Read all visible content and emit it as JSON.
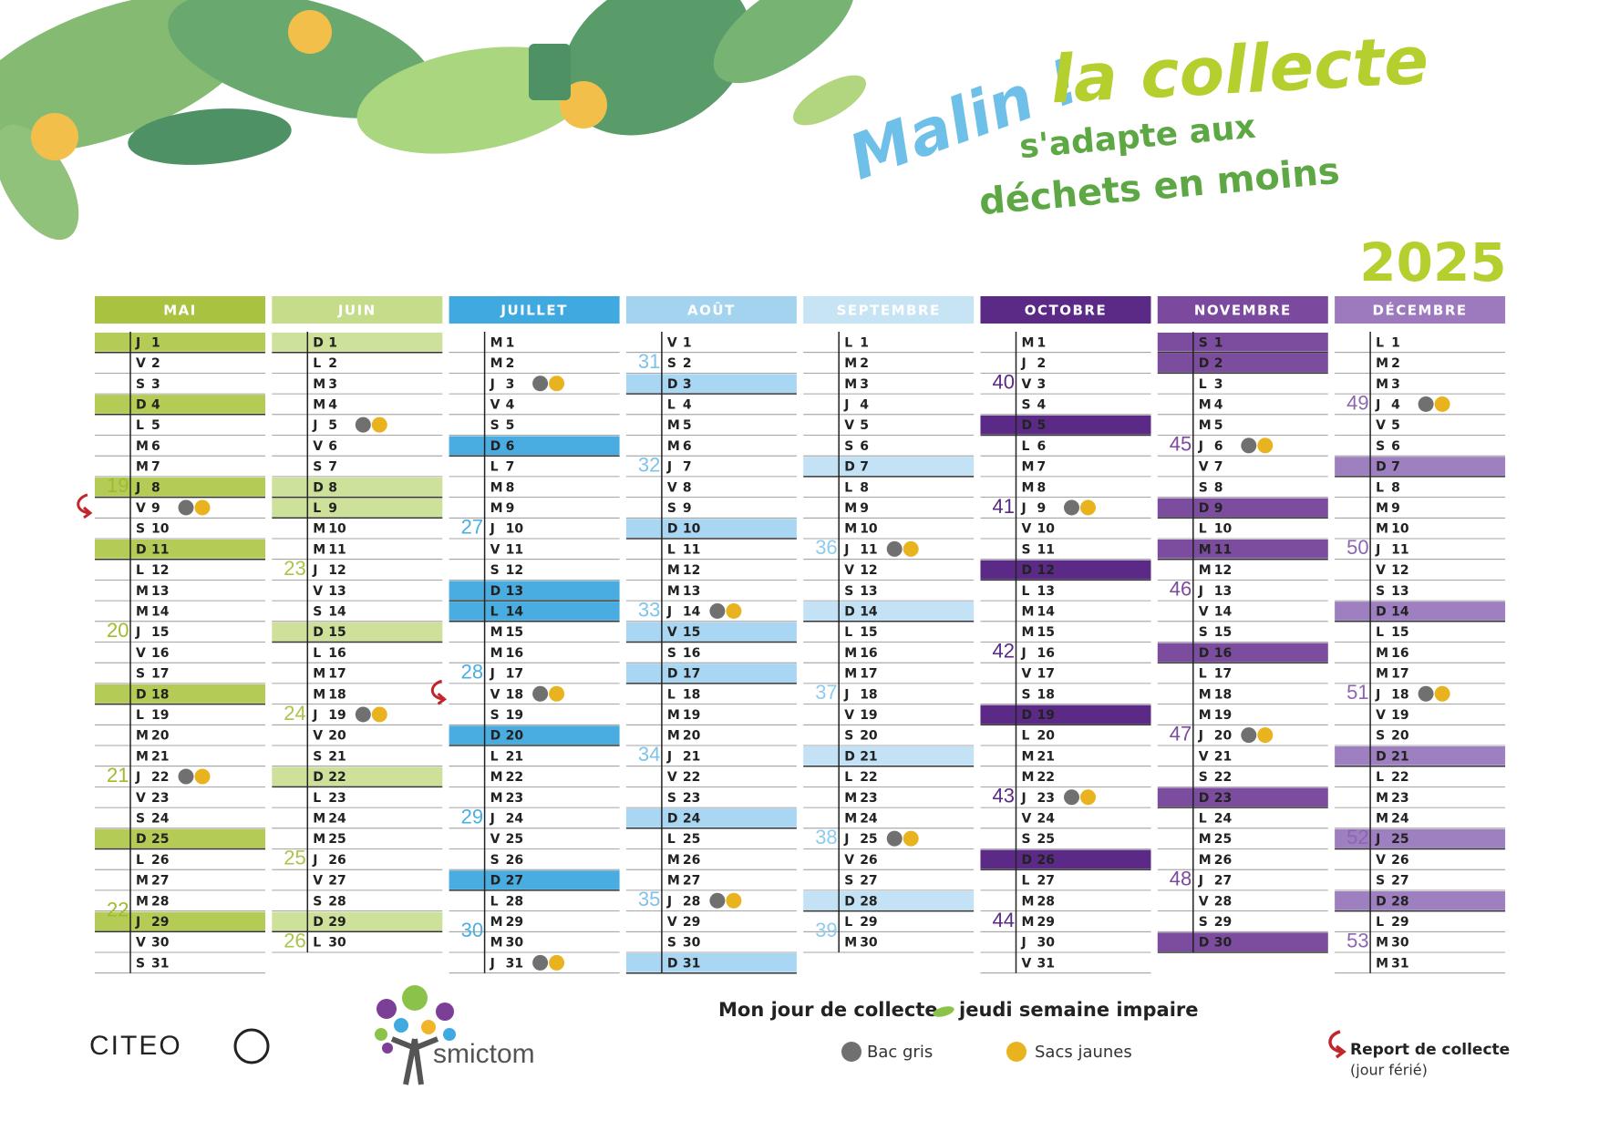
{
  "title": {
    "line1": "Malin !",
    "line2": "la collecte",
    "line3": "s'adapte aux",
    "line4": "déchets en moins"
  },
  "year": "2025",
  "months": [
    {
      "name": "MAI",
      "color": "#a9c23f",
      "highlight": "#b4cc55",
      "highlight_text": "#222",
      "week_color": "#9fbc2f",
      "letters": [
        "J",
        "V",
        "S",
        "D",
        "L",
        "M",
        "M",
        "J",
        "V",
        "S",
        "D",
        "L",
        "M",
        "M",
        "J",
        "V",
        "S",
        "D",
        "L",
        "M",
        "M",
        "J",
        "V",
        "S",
        "D",
        "L",
        "M",
        "M",
        "J",
        "V",
        "S"
      ],
      "days": [
        1,
        2,
        3,
        4,
        5,
        6,
        7,
        8,
        9,
        10,
        11,
        12,
        13,
        14,
        15,
        16,
        17,
        18,
        19,
        20,
        21,
        22,
        23,
        24,
        25,
        26,
        27,
        28,
        29,
        30,
        31
      ],
      "highlighted": [
        0,
        3,
        7,
        10,
        17,
        24,
        28
      ],
      "collection": [
        8,
        21
      ],
      "report": [
        8
      ],
      "weeks": [
        19,
        20,
        21,
        22
      ]
    },
    {
      "name": "JUIN",
      "color": "#c5dc8a",
      "highlight": "#cde19a",
      "highlight_text": "#222",
      "week_color": "#a9c54a",
      "letters": [
        "D",
        "L",
        "M",
        "M",
        "J",
        "V",
        "S",
        "D",
        "L",
        "M",
        "M",
        "J",
        "V",
        "S",
        "D",
        "L",
        "M",
        "M",
        "J",
        "V",
        "S",
        "D",
        "L",
        "M",
        "M",
        "J",
        "V",
        "S",
        "D",
        "L"
      ],
      "days": [
        1,
        2,
        3,
        4,
        5,
        6,
        7,
        8,
        9,
        10,
        11,
        12,
        13,
        14,
        15,
        16,
        17,
        18,
        19,
        20,
        21,
        22,
        23,
        24,
        25,
        26,
        27,
        28,
        29,
        30
      ],
      "highlighted": [
        0,
        7,
        8,
        14,
        21,
        28
      ],
      "collection": [
        4,
        18
      ],
      "report": [],
      "weeks": [
        23,
        24,
        25,
        26
      ]
    },
    {
      "name": "JUILLET",
      "color": "#3fa9e0",
      "highlight": "#49ade1",
      "highlight_text": "#222",
      "week_color": "#4aaee0",
      "letters": [
        "M",
        "M",
        "J",
        "V",
        "S",
        "D",
        "L",
        "M",
        "M",
        "J",
        "V",
        "S",
        "D",
        "L",
        "M",
        "M",
        "J",
        "V",
        "S",
        "D",
        "L",
        "M",
        "M",
        "J",
        "V",
        "S",
        "D",
        "L",
        "M",
        "M",
        "J"
      ],
      "days": [
        1,
        2,
        3,
        4,
        5,
        6,
        7,
        8,
        9,
        10,
        11,
        12,
        13,
        14,
        15,
        16,
        17,
        18,
        19,
        20,
        21,
        22,
        23,
        24,
        25,
        26,
        27,
        28,
        29,
        30,
        31
      ],
      "highlighted": [
        5,
        12,
        13,
        19,
        26
      ],
      "collection": [
        2,
        17,
        30
      ],
      "report": [
        17
      ],
      "weeks": [
        27,
        28,
        29,
        30
      ]
    },
    {
      "name": "AOÛT",
      "color": "#a4d3f0",
      "highlight": "#a9d6f2",
      "highlight_text": "#222",
      "week_color": "#7fc2ea",
      "letters": [
        "V",
        "S",
        "D",
        "L",
        "M",
        "M",
        "J",
        "V",
        "S",
        "D",
        "L",
        "M",
        "M",
        "J",
        "V",
        "S",
        "D",
        "L",
        "M",
        "M",
        "J",
        "V",
        "S",
        "D",
        "L",
        "M",
        "M",
        "J",
        "V",
        "S",
        "D"
      ],
      "days": [
        1,
        2,
        3,
        4,
        5,
        6,
        7,
        8,
        9,
        10,
        11,
        12,
        13,
        14,
        15,
        16,
        17,
        18,
        19,
        20,
        21,
        22,
        23,
        24,
        25,
        26,
        27,
        28,
        29,
        30,
        31
      ],
      "highlighted": [
        2,
        9,
        14,
        16,
        23,
        30
      ],
      "collection": [
        13,
        27
      ],
      "report": [],
      "weeks": [
        31,
        32,
        33,
        34,
        35
      ]
    },
    {
      "name": "SEPTEMBRE",
      "color": "#c7e4f5",
      "highlight": "#c3e2f5",
      "highlight_text": "#222",
      "week_color": "#8ecbee",
      "letters": [
        "L",
        "M",
        "M",
        "J",
        "V",
        "S",
        "D",
        "L",
        "M",
        "M",
        "J",
        "V",
        "S",
        "D",
        "L",
        "M",
        "M",
        "J",
        "V",
        "S",
        "D",
        "L",
        "M",
        "M",
        "J",
        "V",
        "S",
        "D",
        "L",
        "M"
      ],
      "days": [
        1,
        2,
        3,
        4,
        5,
        6,
        7,
        8,
        9,
        10,
        11,
        12,
        13,
        14,
        15,
        16,
        17,
        18,
        19,
        20,
        21,
        22,
        23,
        24,
        25,
        26,
        27,
        28,
        29,
        30
      ],
      "highlighted": [
        6,
        13,
        20,
        27
      ],
      "collection": [
        10,
        24
      ],
      "report": [],
      "weeks": [
        36,
        37,
        38,
        39
      ]
    },
    {
      "name": "OCTOBRE",
      "color": "#5b2a86",
      "highlight": "#5b2a86",
      "highlight_text": "#fff",
      "week_color": "#5b2a86",
      "letters": [
        "M",
        "J",
        "V",
        "S",
        "D",
        "L",
        "M",
        "M",
        "J",
        "V",
        "S",
        "D",
        "L",
        "M",
        "M",
        "J",
        "V",
        "S",
        "D",
        "L",
        "M",
        "M",
        "J",
        "V",
        "S",
        "D",
        "L",
        "M",
        "M",
        "J",
        "V"
      ],
      "days": [
        1,
        2,
        3,
        4,
        5,
        6,
        7,
        8,
        9,
        10,
        11,
        12,
        13,
        14,
        15,
        16,
        17,
        18,
        19,
        20,
        21,
        22,
        23,
        24,
        25,
        26,
        27,
        28,
        29,
        30,
        31
      ],
      "highlighted": [
        4,
        11,
        18,
        25
      ],
      "collection": [
        8,
        22
      ],
      "report": [],
      "weeks": [
        40,
        41,
        42,
        43,
        44
      ]
    },
    {
      "name": "NOVEMBRE",
      "color": "#7b4a9e",
      "highlight": "#7c4d9f",
      "highlight_text": "#fff",
      "week_color": "#7b4a9e",
      "letters": [
        "S",
        "D",
        "L",
        "M",
        "M",
        "J",
        "V",
        "S",
        "D",
        "L",
        "M",
        "M",
        "J",
        "V",
        "S",
        "D",
        "L",
        "M",
        "M",
        "J",
        "V",
        "S",
        "D",
        "L",
        "M",
        "M",
        "J",
        "V",
        "S",
        "D"
      ],
      "days": [
        1,
        2,
        3,
        4,
        5,
        6,
        7,
        8,
        9,
        10,
        11,
        12,
        13,
        14,
        15,
        16,
        17,
        18,
        19,
        20,
        21,
        22,
        23,
        24,
        25,
        26,
        27,
        28,
        29,
        30
      ],
      "highlighted": [
        0,
        1,
        8,
        10,
        15,
        22,
        29
      ],
      "collection": [
        5,
        19
      ],
      "report": [],
      "weeks": [
        45,
        46,
        47,
        48
      ]
    },
    {
      "name": "DÉCEMBRE",
      "color": "#9d79bd",
      "highlight": "#9e7fc0",
      "highlight_text": "#fff",
      "week_color": "#8d66b3",
      "letters": [
        "L",
        "M",
        "M",
        "J",
        "V",
        "S",
        "D",
        "L",
        "M",
        "M",
        "J",
        "V",
        "S",
        "D",
        "L",
        "M",
        "M",
        "J",
        "V",
        "S",
        "D",
        "L",
        "M",
        "M",
        "J",
        "V",
        "S",
        "D",
        "L",
        "M",
        "M"
      ],
      "days": [
        1,
        2,
        3,
        4,
        5,
        6,
        7,
        8,
        9,
        10,
        11,
        12,
        13,
        14,
        15,
        16,
        17,
        18,
        19,
        20,
        21,
        22,
        23,
        24,
        25,
        26,
        27,
        28,
        29,
        30,
        31
      ],
      "highlighted": [
        6,
        13,
        20,
        24,
        27
      ],
      "collection": [
        3,
        17
      ],
      "report": [],
      "weeks": [
        49,
        50,
        51,
        52,
        53
      ]
    }
  ],
  "legend": {
    "title": "Mon jour de collecte",
    "subtitle": "jeudi semaine impaire",
    "bin": "Bac gris",
    "bin_color": "#707070",
    "bags": "Sacs jaunes",
    "bags_color": "#e9b320",
    "report": "Report de collecte",
    "report_note": "(jour férié)"
  },
  "logos": {
    "citeo": "CITEO",
    "smictom": "smictom"
  }
}
